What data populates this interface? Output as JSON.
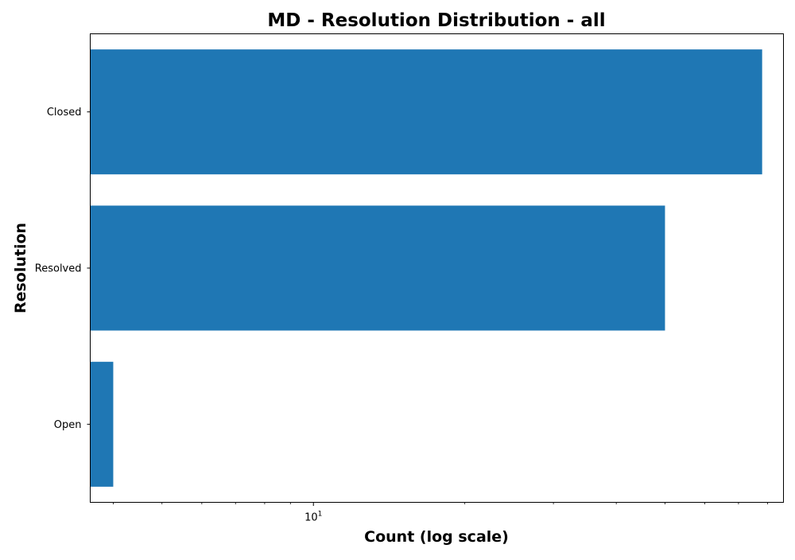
{
  "chart_data": {
    "type": "bar",
    "orientation": "horizontal",
    "title": "MD - Resolution Distribution - all",
    "xlabel": "Count (log scale)",
    "ylabel": "Resolution",
    "x_scale": "log",
    "xlim": [
      3.6,
      86
    ],
    "x_major_ticks": [
      {
        "value": 10,
        "base": "10",
        "exp": "1"
      }
    ],
    "x_minor_ticks": [
      4,
      5,
      6,
      7,
      8,
      9,
      20,
      30,
      40,
      50,
      60,
      70,
      80
    ],
    "categories": [
      "Closed",
      "Resolved",
      "Open"
    ],
    "values": [
      78,
      50,
      4
    ],
    "bar_color": "#1f77b4",
    "grid": false,
    "legend": "none"
  }
}
